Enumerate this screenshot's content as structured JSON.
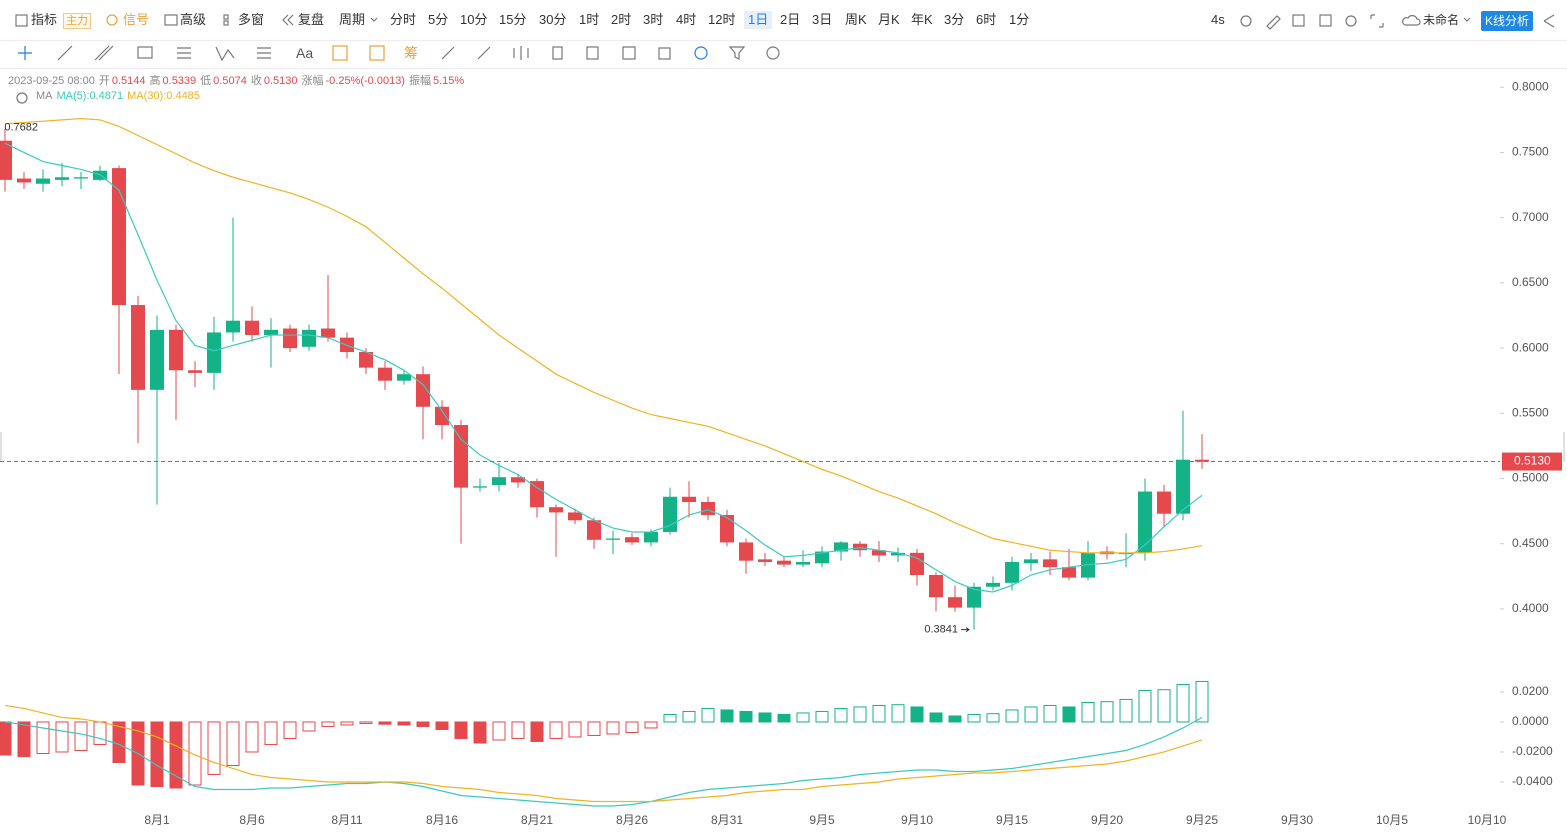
{
  "toolbar": {
    "row1": [
      "指标",
      "主力",
      "信号",
      "高级",
      "多窗",
      "复盘",
      "周期",
      "分时",
      "5分",
      "10分",
      "15分",
      "30分",
      "1时",
      "2时",
      "3时",
      "4时",
      "12时",
      "1日",
      "2日",
      "3日",
      "周K",
      "月K",
      "年K",
      "3分",
      "6时",
      "1分"
    ],
    "right": [
      "4s",
      "未命名",
      "K线分析"
    ],
    "row2": [
      "Aa",
      "筹"
    ]
  },
  "info": {
    "date": "2023-09-25 08:00",
    "value_color": "#e5484d",
    "items": [
      {
        "label": "开",
        "value": "0.5144"
      },
      {
        "label": "高",
        "value": "0.5339"
      },
      {
        "label": "低",
        "value": "0.5074"
      },
      {
        "label": "收",
        "value": "0.5130"
      },
      {
        "label": "涨幅",
        "value": "-0.25%(-0.0013)"
      },
      {
        "label": "振幅",
        "value": "5.15%"
      }
    ]
  },
  "ma_legend": {
    "name": "MA",
    "items": [
      {
        "text": "MA(5):0.4871",
        "color": "#3cc9c0"
      },
      {
        "text": "MA(30):0.4485",
        "color": "#f0b323"
      }
    ]
  },
  "chart_data": [
    {
      "type": "candlestick",
      "categories": [
        null,
        null,
        null,
        null,
        null,
        null,
        null,
        null,
        "8月1",
        null,
        null,
        null,
        null,
        "8月6",
        null,
        null,
        null,
        null,
        "8月11",
        null,
        null,
        null,
        null,
        "8月16",
        null,
        null,
        null,
        null,
        "8月21",
        null,
        null,
        null,
        null,
        "8月26",
        null,
        null,
        null,
        null,
        "8月31",
        null,
        null,
        null,
        null,
        "9月5",
        null,
        null,
        null,
        null,
        "9月10",
        null,
        null,
        null,
        null,
        "9月15",
        null,
        null,
        null,
        null,
        "9月20",
        null,
        null,
        null,
        null,
        "9月25"
      ],
      "future_ticks": [
        "9月30",
        "10月5",
        "10月10"
      ],
      "open": [
        0.759,
        0.73,
        0.726,
        0.729,
        0.73,
        0.729,
        0.738,
        0.633,
        0.568,
        0.614,
        0.583,
        0.581,
        0.612,
        0.621,
        0.61,
        0.615,
        0.601,
        0.615,
        0.608,
        0.597,
        0.585,
        0.575,
        0.58,
        0.555,
        0.541,
        0.493,
        0.495,
        0.501,
        0.498,
        0.478,
        0.474,
        0.468,
        0.453,
        0.455,
        0.451,
        0.459,
        0.486,
        0.482,
        0.472,
        0.451,
        0.438,
        0.437,
        0.434,
        0.435,
        0.444,
        0.45,
        0.445,
        0.441,
        0.443,
        0.426,
        0.409,
        0.401,
        0.417,
        0.42,
        0.435,
        0.438,
        0.432,
        0.424,
        0.444,
        0.442,
        0.443,
        0.49,
        0.473,
        0.5144
      ],
      "high": [
        0.7682,
        0.735,
        0.737,
        0.742,
        0.735,
        0.74,
        0.74,
        0.64,
        0.625,
        0.618,
        0.59,
        0.624,
        0.7,
        0.632,
        0.623,
        0.618,
        0.618,
        0.656,
        0.612,
        0.6,
        0.59,
        0.583,
        0.586,
        0.56,
        0.545,
        0.5,
        0.512,
        0.503,
        0.5,
        0.48,
        0.477,
        0.47,
        0.46,
        0.458,
        0.461,
        0.493,
        0.498,
        0.486,
        0.476,
        0.454,
        0.443,
        0.44,
        0.445,
        0.448,
        0.452,
        0.452,
        0.452,
        0.447,
        0.446,
        0.428,
        0.418,
        0.42,
        0.425,
        0.44,
        0.443,
        0.444,
        0.446,
        0.452,
        0.448,
        0.458,
        0.5,
        0.495,
        0.552,
        0.5339
      ],
      "low": [
        0.72,
        0.722,
        0.72,
        0.724,
        0.722,
        0.728,
        0.58,
        0.527,
        0.48,
        0.545,
        0.57,
        0.568,
        0.605,
        0.605,
        0.585,
        0.597,
        0.598,
        0.605,
        0.592,
        0.58,
        0.568,
        0.572,
        0.53,
        0.53,
        0.45,
        0.49,
        0.49,
        0.493,
        0.47,
        0.44,
        0.465,
        0.446,
        0.442,
        0.449,
        0.448,
        0.457,
        0.47,
        0.468,
        0.448,
        0.427,
        0.433,
        0.432,
        0.432,
        0.432,
        0.437,
        0.44,
        0.436,
        0.436,
        0.418,
        0.398,
        0.398,
        0.3841,
        0.414,
        0.414,
        0.429,
        0.426,
        0.422,
        0.422,
        0.438,
        0.432,
        0.437,
        0.463,
        0.468,
        0.5074
      ],
      "close": [
        0.729,
        0.727,
        0.73,
        0.731,
        0.731,
        0.736,
        0.633,
        0.568,
        0.614,
        0.583,
        0.581,
        0.612,
        0.621,
        0.61,
        0.614,
        0.6,
        0.614,
        0.608,
        0.597,
        0.585,
        0.575,
        0.58,
        0.555,
        0.541,
        0.493,
        0.494,
        0.501,
        0.497,
        0.478,
        0.474,
        0.468,
        0.453,
        0.454,
        0.451,
        0.459,
        0.486,
        0.482,
        0.472,
        0.451,
        0.437,
        0.436,
        0.434,
        0.436,
        0.444,
        0.451,
        0.445,
        0.441,
        0.443,
        0.426,
        0.409,
        0.401,
        0.417,
        0.42,
        0.436,
        0.438,
        0.432,
        0.424,
        0.443,
        0.442,
        0.443,
        0.49,
        0.473,
        0.5144,
        0.513
      ],
      "up_color": "#14b387",
      "down_color": "#e5484d",
      "lines": [
        {
          "color": "#3cc9c0",
          "values": [
            0.757,
            0.75,
            0.743,
            0.74,
            0.737,
            0.733,
            0.721,
            0.687,
            0.652,
            0.621,
            0.602,
            0.598,
            0.602,
            0.606,
            0.61,
            0.61,
            0.61,
            0.608,
            0.602,
            0.597,
            0.591,
            0.583,
            0.572,
            0.552,
            0.53,
            0.518,
            0.51,
            0.503,
            0.493,
            0.484,
            0.476,
            0.468,
            0.462,
            0.459,
            0.459,
            0.464,
            0.472,
            0.476,
            0.47,
            0.46,
            0.449,
            0.44,
            0.441,
            0.443,
            0.445,
            0.447,
            0.445,
            0.443,
            0.439,
            0.43,
            0.421,
            0.415,
            0.413,
            0.418,
            0.426,
            0.43,
            0.432,
            0.434,
            0.435,
            0.438,
            0.449,
            0.463,
            0.476,
            0.4871
          ]
        },
        {
          "color": "#f0b323",
          "values": [
            0.772,
            0.773,
            0.774,
            0.775,
            0.776,
            0.775,
            0.77,
            0.763,
            0.756,
            0.749,
            0.742,
            0.736,
            0.731,
            0.727,
            0.723,
            0.719,
            0.714,
            0.708,
            0.701,
            0.693,
            0.681,
            0.669,
            0.657,
            0.646,
            0.634,
            0.622,
            0.61,
            0.6,
            0.59,
            0.58,
            0.573,
            0.566,
            0.56,
            0.554,
            0.549,
            0.546,
            0.543,
            0.54,
            0.535,
            0.53,
            0.525,
            0.519,
            0.513,
            0.507,
            0.502,
            0.496,
            0.49,
            0.485,
            0.479,
            0.473,
            0.466,
            0.46,
            0.454,
            0.451,
            0.448,
            0.445,
            0.444,
            0.443,
            0.443,
            0.443,
            0.443,
            0.444,
            0.446,
            0.4485
          ]
        }
      ],
      "last_price_label": "0.5130",
      "high_label": "0.7682",
      "low_label": "0.3841",
      "ylim": [
        0.357,
        0.814
      ],
      "yticks": [
        {
          "value": 0.8,
          "label": "0.8000"
        },
        {
          "value": 0.75,
          "label": "0.7500"
        },
        {
          "value": 0.7,
          "label": "0.7000"
        },
        {
          "value": 0.65,
          "label": "0.6500"
        },
        {
          "value": 0.6,
          "label": "0.6000"
        },
        {
          "value": 0.55,
          "label": "0.5500"
        },
        {
          "value": 0.5,
          "label": "0.5000"
        },
        {
          "value": 0.45,
          "label": "0.4500"
        },
        {
          "value": 0.4,
          "label": "0.4000"
        }
      ]
    },
    {
      "type": "macd",
      "histogram": [
        -0.022,
        -0.023,
        -0.021,
        -0.02,
        -0.019,
        -0.015,
        -0.027,
        -0.042,
        -0.043,
        -0.044,
        -0.042,
        -0.035,
        -0.029,
        -0.02,
        -0.015,
        -0.011,
        -0.006,
        -0.003,
        -0.002,
        -0.001,
        -0.0015,
        -0.002,
        -0.003,
        -0.005,
        -0.011,
        -0.014,
        -0.012,
        -0.011,
        -0.013,
        -0.011,
        -0.01,
        -0.009,
        -0.008,
        -0.007,
        -0.004,
        0.005,
        0.007,
        0.009,
        0.008,
        0.007,
        0.006,
        0.005,
        0.006,
        0.007,
        0.009,
        0.01,
        0.011,
        0.0115,
        0.01,
        0.006,
        0.004,
        0.005,
        0.0055,
        0.008,
        0.01,
        0.011,
        0.01,
        0.013,
        0.0135,
        0.015,
        0.021,
        0.0215,
        0.025,
        0.027
      ],
      "up_color": "#14b387",
      "down_color": "#e5484d",
      "lines": [
        {
          "color": "#3cc9c0",
          "values": [
            0.0,
            -0.002,
            -0.004,
            -0.006,
            -0.008,
            -0.011,
            -0.015,
            -0.021,
            -0.029,
            -0.036,
            -0.043,
            -0.045,
            -0.045,
            -0.045,
            -0.044,
            -0.044,
            -0.043,
            -0.042,
            -0.041,
            -0.041,
            -0.04,
            -0.041,
            -0.043,
            -0.046,
            -0.049,
            -0.05,
            -0.051,
            -0.052,
            -0.053,
            -0.054,
            -0.055,
            -0.056,
            -0.056,
            -0.055,
            -0.053,
            -0.05,
            -0.047,
            -0.045,
            -0.044,
            -0.043,
            -0.042,
            -0.041,
            -0.039,
            -0.038,
            -0.037,
            -0.035,
            -0.034,
            -0.033,
            -0.032,
            -0.032,
            -0.033,
            -0.033,
            -0.032,
            -0.031,
            -0.029,
            -0.027,
            -0.025,
            -0.023,
            -0.021,
            -0.019,
            -0.015,
            -0.01,
            -0.004,
            0.003
          ]
        },
        {
          "color": "#f0b323",
          "values": [
            0.011,
            0.009,
            0.006,
            0.003,
            0.002,
            0.0,
            -0.003,
            -0.006,
            -0.01,
            -0.016,
            -0.022,
            -0.027,
            -0.031,
            -0.035,
            -0.037,
            -0.038,
            -0.039,
            -0.04,
            -0.04,
            -0.04,
            -0.04,
            -0.04,
            -0.041,
            -0.043,
            -0.044,
            -0.045,
            -0.047,
            -0.048,
            -0.049,
            -0.051,
            -0.052,
            -0.053,
            -0.053,
            -0.053,
            -0.053,
            -0.052,
            -0.051,
            -0.05,
            -0.049,
            -0.047,
            -0.046,
            -0.045,
            -0.045,
            -0.043,
            -0.042,
            -0.041,
            -0.04,
            -0.038,
            -0.037,
            -0.036,
            -0.035,
            -0.034,
            -0.034,
            -0.033,
            -0.032,
            -0.031,
            -0.03,
            -0.029,
            -0.028,
            -0.026,
            -0.023,
            -0.02,
            -0.016,
            -0.012
          ]
        }
      ],
      "ylim": [
        -0.06,
        0.0333
      ],
      "yticks": [
        {
          "value": 0.02,
          "label": "0.0200"
        },
        {
          "value": 0,
          "label": "0.0000"
        },
        {
          "value": -0.02,
          "label": "-0.0200"
        },
        {
          "value": -0.04,
          "label": "-0.0400"
        }
      ]
    }
  ]
}
